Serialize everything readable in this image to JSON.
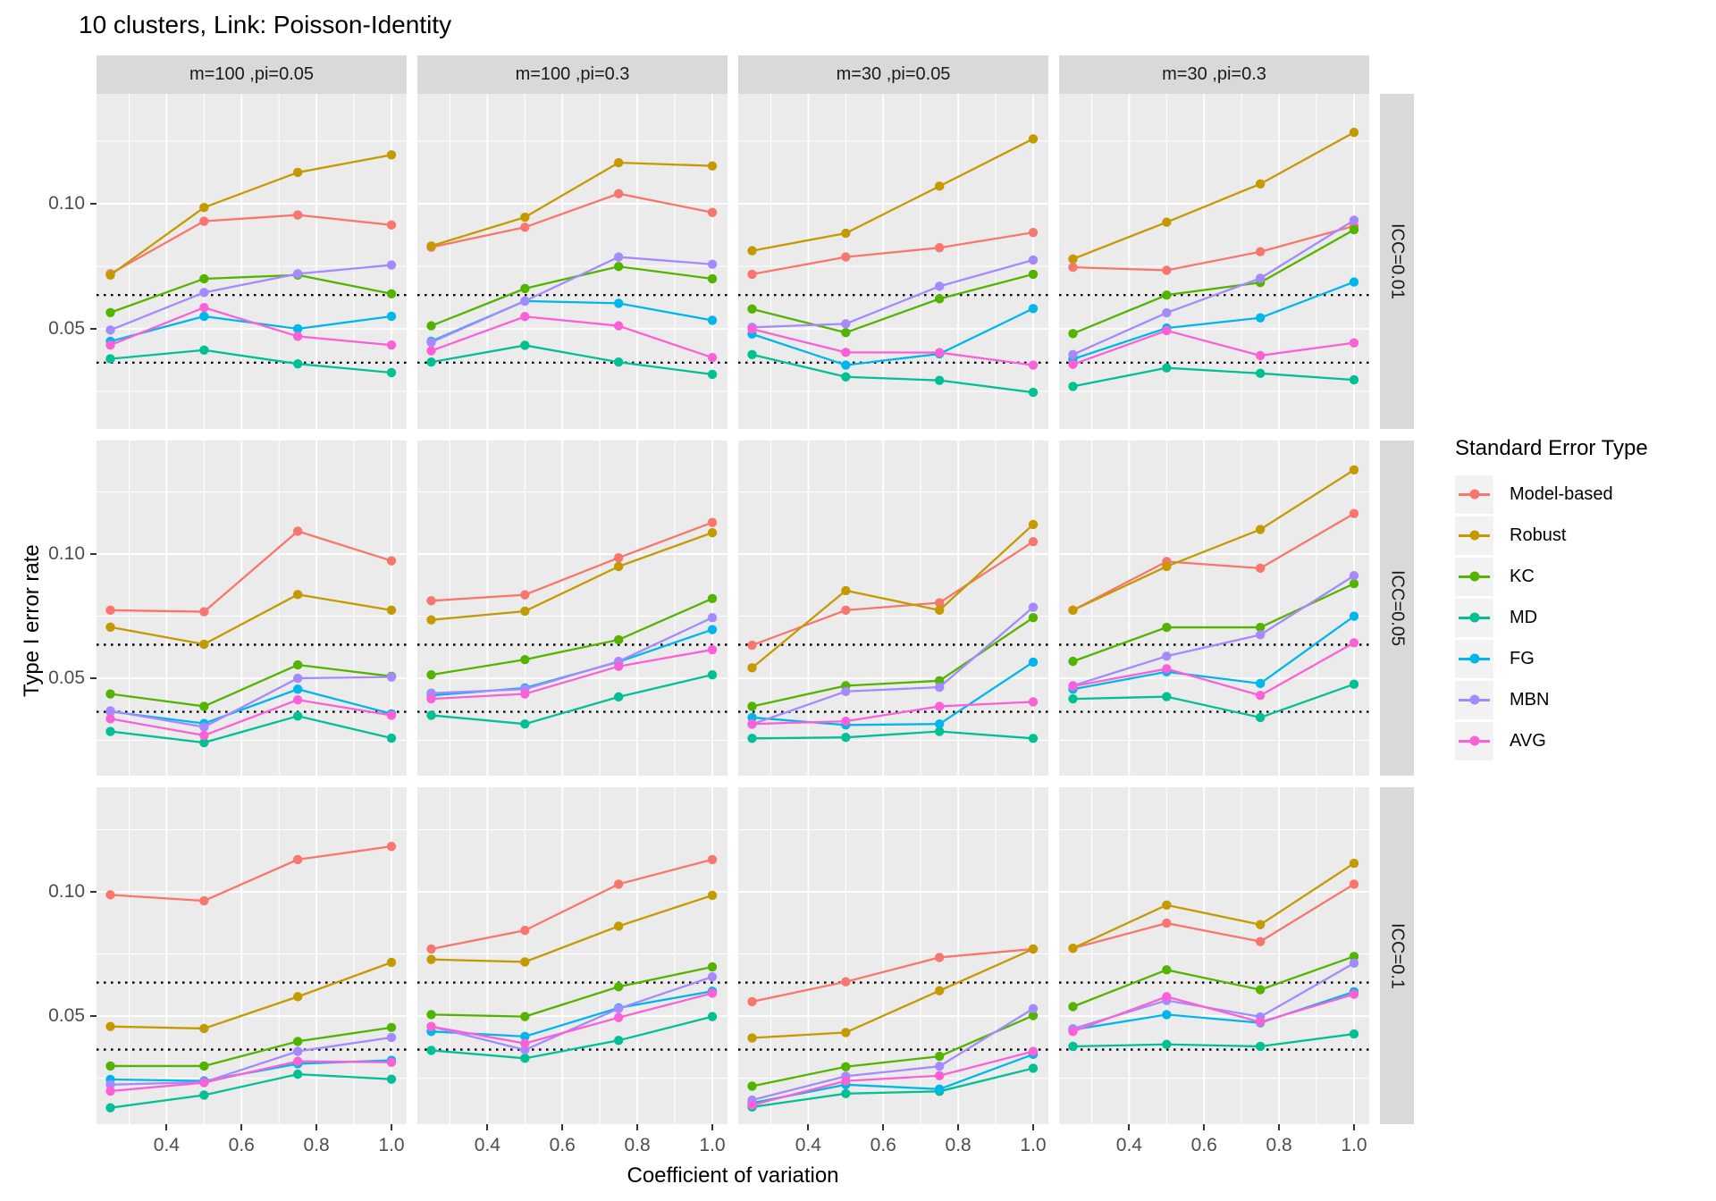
{
  "title": "10 clusters, Link: Poisson-Identity",
  "x_axis": {
    "label": "Coefficient of variation",
    "ticks": [
      "0.4",
      "0.6",
      "0.8",
      "1.0"
    ],
    "tick_values": [
      0.4,
      0.6,
      0.8,
      1.0
    ]
  },
  "y_axis": {
    "label": "Type I error rate",
    "ticks": [
      "0.10",
      "0.05"
    ],
    "tick_values": [
      0.1,
      0.05
    ]
  },
  "facets": {
    "columns": [
      "m=100 ,pi=0.05",
      "m=100 ,pi=0.3",
      "m=30 ,pi=0.05",
      "m=30 ,pi=0.3"
    ],
    "rows": [
      "ICC=0.01",
      "ICC=0.05",
      "ICC=0.1"
    ]
  },
  "legend": {
    "title": "Standard Error Type",
    "entries": [
      {
        "label": "Model-based",
        "color": "#F8766D"
      },
      {
        "label": "Robust",
        "color": "#C49A00"
      },
      {
        "label": "KC",
        "color": "#53B400"
      },
      {
        "label": "MD",
        "color": "#00C094"
      },
      {
        "label": "FG",
        "color": "#00B6EB"
      },
      {
        "label": "MBN",
        "color": "#A58AFF"
      },
      {
        "label": "AVG",
        "color": "#FB61D7"
      }
    ]
  },
  "colors": {
    "panel_bg": "#EBEBEB",
    "strip_bg": "#D9D9D9",
    "grid": "#FFFFFF",
    "ref_line": "#000000",
    "axis_text": "#4D4D4D",
    "title_text": "#000000"
  },
  "chart_data": {
    "type": "line",
    "title": "10 clusters, Link: Poisson-Identity",
    "xlabel": "Coefficient of variation",
    "ylabel": "Type I error rate",
    "x": [
      0.25,
      0.5,
      0.75,
      1.0
    ],
    "x_range": [
      0.25,
      1.0
    ],
    "y_major_ticks": [
      0.05,
      0.1
    ],
    "y_minor_ticks": [
      0.025,
      0.075,
      0.125
    ],
    "x_minor_ticks": [
      0.3,
      0.5,
      0.7,
      0.9
    ],
    "reference_lines": [
      0.0365,
      0.0635
    ],
    "series_names": [
      "Model-based",
      "Robust",
      "KC",
      "MD",
      "FG",
      "MBN",
      "AVG"
    ],
    "row_value_domains": [
      [
        0.01,
        0.1439
      ],
      [
        0.0108,
        0.1457
      ],
      [
        0.0065,
        0.1421
      ]
    ],
    "panels": [
      {
        "row": "ICC=0.01",
        "col": "m=100 ,pi=0.05",
        "series": {
          "Model-based": [
            0.072,
            0.093,
            0.0955,
            0.0915
          ],
          "Robust": [
            0.0715,
            0.0985,
            0.1125,
            0.1195
          ],
          "KC": [
            0.0565,
            0.07,
            0.0715,
            0.064
          ],
          "MD": [
            0.038,
            0.0415,
            0.036,
            0.0325
          ],
          "FG": [
            0.045,
            0.055,
            0.05,
            0.055
          ],
          "MBN": [
            0.0495,
            0.0645,
            0.072,
            0.0755
          ],
          "AVG": [
            0.0435,
            0.0585,
            0.047,
            0.0435
          ]
        }
      },
      {
        "row": "ICC=0.01",
        "col": "m=100 ,pi=0.3",
        "series": {
          "Model-based": [
            0.0826,
            0.0906,
            0.104,
            0.0965
          ],
          "Robust": [
            0.0831,
            0.0946,
            0.1164,
            0.1151
          ],
          "KC": [
            0.0512,
            0.0661,
            0.0749,
            0.07
          ],
          "MD": [
            0.0367,
            0.0434,
            0.0367,
            0.0318
          ],
          "FG": [
            0.045,
            0.0611,
            0.0602,
            0.0534
          ],
          "MBN": [
            0.0446,
            0.0611,
            0.0787,
            0.0758
          ],
          "AVG": [
            0.0412,
            0.0549,
            0.0512,
            0.0385
          ]
        }
      },
      {
        "row": "ICC=0.01",
        "col": "m=30 ,pi=0.05",
        "series": {
          "Model-based": [
            0.0718,
            0.0787,
            0.0824,
            0.0885
          ],
          "Robust": [
            0.0812,
            0.0882,
            0.107,
            0.1259
          ],
          "KC": [
            0.0579,
            0.0485,
            0.062,
            0.0718
          ],
          "MD": [
            0.0397,
            0.0308,
            0.0294,
            0.0246
          ],
          "FG": [
            0.0479,
            0.0355,
            0.04,
            0.0581
          ],
          "MBN": [
            0.0506,
            0.052,
            0.067,
            0.0775
          ],
          "AVG": [
            0.0499,
            0.0406,
            0.0405,
            0.0355
          ]
        }
      },
      {
        "row": "ICC=0.01",
        "col": "m=30 ,pi=0.3",
        "series": {
          "Model-based": [
            0.0746,
            0.0734,
            0.0808,
            0.0911
          ],
          "Robust": [
            0.0779,
            0.0926,
            0.1079,
            0.1285
          ],
          "KC": [
            0.0481,
            0.0635,
            0.0685,
            0.0896
          ],
          "MD": [
            0.027,
            0.0344,
            0.0322,
            0.0296
          ],
          "FG": [
            0.0379,
            0.0503,
            0.0544,
            0.0687
          ],
          "MBN": [
            0.0397,
            0.0564,
            0.0702,
            0.0934
          ],
          "AVG": [
            0.0358,
            0.0493,
            0.0393,
            0.0444
          ]
        }
      },
      {
        "row": "ICC=0.05",
        "col": "m=100 ,pi=0.05",
        "series": {
          "Model-based": [
            0.0774,
            0.0768,
            0.1092,
            0.0973
          ],
          "Robust": [
            0.0706,
            0.0637,
            0.0837,
            0.0774
          ],
          "KC": [
            0.0437,
            0.0387,
            0.0554,
            0.0508
          ],
          "MD": [
            0.0286,
            0.0241,
            0.0348,
            0.0259
          ],
          "FG": [
            0.0366,
            0.0318,
            0.0456,
            0.0357
          ],
          "MBN": [
            0.0369,
            0.0304,
            0.05,
            0.0505
          ],
          "AVG": [
            0.0337,
            0.027,
            0.0413,
            0.0351
          ]
        }
      },
      {
        "row": "ICC=0.05",
        "col": "m=100 ,pi=0.3",
        "series": {
          "Model-based": [
            0.0812,
            0.0836,
            0.0985,
            0.1127
          ],
          "Robust": [
            0.0735,
            0.077,
            0.095,
            0.1086
          ],
          "KC": [
            0.0514,
            0.0575,
            0.0655,
            0.0821
          ],
          "MD": [
            0.0351,
            0.0316,
            0.0425,
            0.0514
          ],
          "FG": [
            0.0431,
            0.0461,
            0.0566,
            0.0696
          ],
          "MBN": [
            0.044,
            0.0456,
            0.0568,
            0.0744
          ],
          "AVG": [
            0.0417,
            0.0437,
            0.0548,
            0.0615
          ]
        }
      },
      {
        "row": "ICC=0.05",
        "col": "m=30 ,pi=0.05",
        "series": {
          "Model-based": [
            0.0633,
            0.0774,
            0.0804,
            0.105
          ],
          "Robust": [
            0.0542,
            0.0853,
            0.0774,
            0.1119
          ],
          "KC": [
            0.0387,
            0.047,
            0.049,
            0.0744
          ],
          "MD": [
            0.0258,
            0.0262,
            0.0286,
            0.0258
          ],
          "FG": [
            0.0342,
            0.0312,
            0.0316,
            0.0565
          ],
          "MBN": [
            0.0315,
            0.0447,
            0.0464,
            0.0786
          ],
          "AVG": [
            0.0316,
            0.0327,
            0.0387,
            0.0405
          ]
        }
      },
      {
        "row": "ICC=0.05",
        "col": "m=30 ,pi=0.3",
        "series": {
          "Model-based": [
            0.0774,
            0.097,
            0.0943,
            0.1163
          ],
          "Robust": [
            0.0774,
            0.095,
            0.1099,
            0.1339
          ],
          "KC": [
            0.0568,
            0.0705,
            0.0705,
            0.0881
          ],
          "MD": [
            0.0417,
            0.0426,
            0.0342,
            0.0476
          ],
          "FG": [
            0.0456,
            0.0526,
            0.0479,
            0.075
          ],
          "MBN": [
            0.047,
            0.0589,
            0.0675,
            0.0913
          ],
          "AVG": [
            0.0468,
            0.0538,
            0.0431,
            0.0643
          ]
        }
      },
      {
        "row": "ICC=0.1",
        "col": "m=100 ,pi=0.05",
        "series": {
          "Model-based": [
            0.0988,
            0.0964,
            0.113,
            0.1183
          ],
          "Robust": [
            0.0458,
            0.045,
            0.0578,
            0.0716
          ],
          "KC": [
            0.0299,
            0.0299,
            0.0398,
            0.0454
          ],
          "MD": [
            0.0131,
            0.0182,
            0.0266,
            0.0246
          ],
          "FG": [
            0.0245,
            0.0239,
            0.0308,
            0.0322
          ],
          "MBN": [
            0.0224,
            0.0234,
            0.0358,
            0.0414
          ],
          "AVG": [
            0.0198,
            0.0232,
            0.0318,
            0.0314
          ]
        }
      },
      {
        "row": "ICC=0.1",
        "col": "m=100 ,pi=0.3",
        "series": {
          "Model-based": [
            0.077,
            0.0845,
            0.1031,
            0.113
          ],
          "Robust": [
            0.0728,
            0.0718,
            0.0862,
            0.0986
          ],
          "KC": [
            0.0506,
            0.0498,
            0.0618,
            0.0698
          ],
          "MD": [
            0.0362,
            0.033,
            0.0402,
            0.0498
          ],
          "FG": [
            0.0438,
            0.0418,
            0.0533,
            0.06
          ],
          "MBN": [
            0.0458,
            0.0364,
            0.053,
            0.0658
          ],
          "AVG": [
            0.0458,
            0.039,
            0.0494,
            0.0592
          ]
        }
      },
      {
        "row": "ICC=0.1",
        "col": "m=30 ,pi=0.05",
        "series": {
          "Model-based": [
            0.0558,
            0.0638,
            0.0736,
            0.077
          ],
          "Robust": [
            0.0412,
            0.0434,
            0.0602,
            0.077
          ],
          "KC": [
            0.0218,
            0.0296,
            0.0338,
            0.0502
          ],
          "MD": [
            0.0134,
            0.0188,
            0.0197,
            0.029
          ],
          "FG": [
            0.015,
            0.0224,
            0.0206,
            0.0346
          ],
          "MBN": [
            0.0162,
            0.0258,
            0.0298,
            0.053
          ],
          "AVG": [
            0.0142,
            0.0239,
            0.026,
            0.0358
          ]
        }
      },
      {
        "row": "ICC=0.1",
        "col": "m=30 ,pi=0.3",
        "series": {
          "Model-based": [
            0.0773,
            0.0874,
            0.08,
            0.1031
          ],
          "Robust": [
            0.0773,
            0.0947,
            0.0868,
            0.1115
          ],
          "KC": [
            0.0538,
            0.0686,
            0.0606,
            0.074
          ],
          "MD": [
            0.0378,
            0.0386,
            0.0378,
            0.0428
          ],
          "FG": [
            0.0445,
            0.0506,
            0.0473,
            0.0598
          ],
          "MBN": [
            0.0449,
            0.0563,
            0.0497,
            0.0713
          ],
          "AVG": [
            0.0438,
            0.0578,
            0.0476,
            0.0588
          ]
        }
      }
    ]
  }
}
